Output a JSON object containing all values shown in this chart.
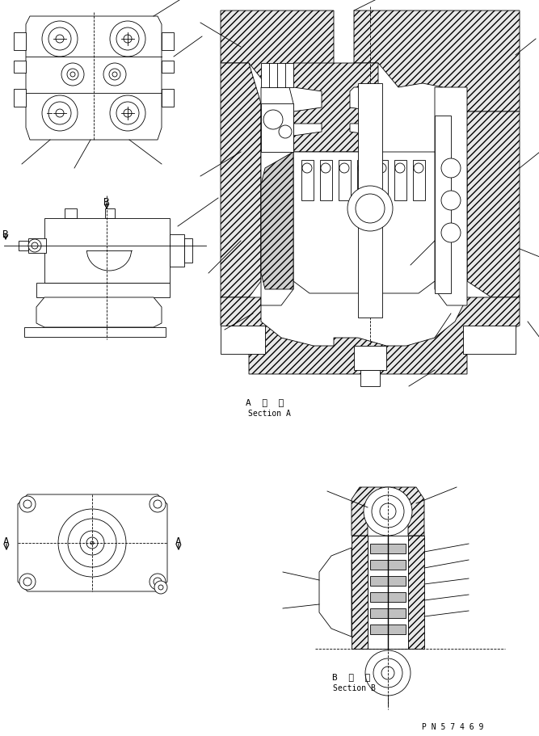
{
  "background_color": "#ffffff",
  "line_color": "#000000",
  "text_color": "#000000",
  "fig_width": 6.67,
  "fig_height": 9.11,
  "section_a_label": "A  断  面",
  "section_a_sub": "Section A",
  "section_b_label": "B  断  面",
  "section_b_sub": "Section B",
  "part_number": "P N 5 7 4 6 9",
  "label_A": "A",
  "label_B": "B"
}
